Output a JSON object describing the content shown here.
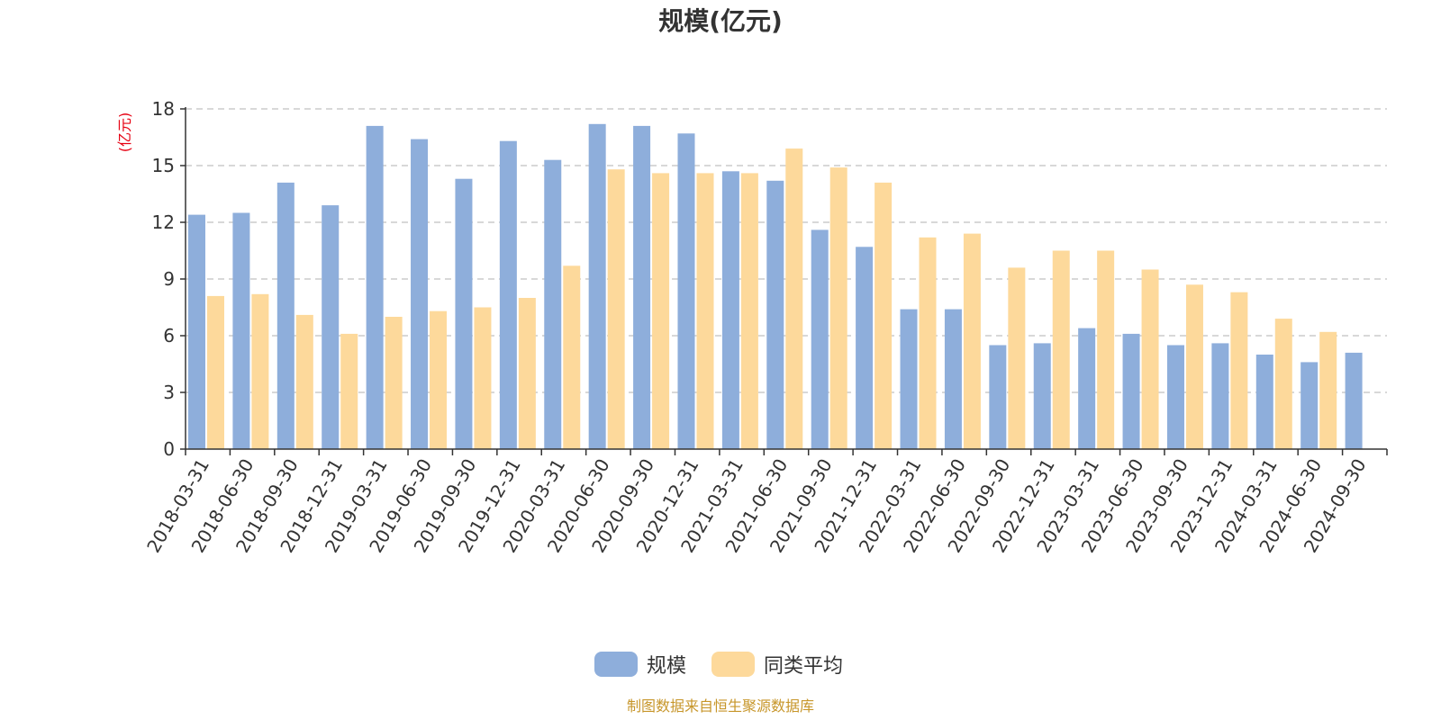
{
  "chart_data": {
    "type": "bar",
    "title": "规模(亿元)",
    "ylabel": "(亿元)",
    "ylim": [
      0,
      18
    ],
    "yticks": [
      0,
      3,
      6,
      9,
      12,
      15,
      18
    ],
    "grid": true,
    "legend_position": "bottom-center",
    "categories": [
      "2018-03-31",
      "2018-06-30",
      "2018-09-30",
      "2018-12-31",
      "2019-03-31",
      "2019-06-30",
      "2019-09-30",
      "2019-12-31",
      "2020-03-31",
      "2020-06-30",
      "2020-09-30",
      "2020-12-31",
      "2021-03-31",
      "2021-06-30",
      "2021-09-30",
      "2021-12-31",
      "2022-03-31",
      "2022-06-30",
      "2022-09-30",
      "2022-12-31",
      "2023-03-31",
      "2023-06-30",
      "2023-09-30",
      "2023-12-31",
      "2024-03-31",
      "2024-06-30",
      "2024-09-30"
    ],
    "series": [
      {
        "name": "规模",
        "color": "#8eaedb",
        "values": [
          12.4,
          12.5,
          14.1,
          12.9,
          17.1,
          16.4,
          14.3,
          16.3,
          15.3,
          17.2,
          17.1,
          16.7,
          14.7,
          14.2,
          11.6,
          10.7,
          7.4,
          7.4,
          5.5,
          5.6,
          6.4,
          6.1,
          5.5,
          5.6,
          5.0,
          4.6,
          5.1
        ]
      },
      {
        "name": "同类平均",
        "color": "#fdd99b",
        "values": [
          8.1,
          8.2,
          7.1,
          6.1,
          7.0,
          7.3,
          7.5,
          8.0,
          9.7,
          14.8,
          14.6,
          14.6,
          14.6,
          15.9,
          14.9,
          14.1,
          11.2,
          11.4,
          9.6,
          10.5,
          10.5,
          9.5,
          8.7,
          8.3,
          6.9,
          6.2,
          null
        ]
      }
    ],
    "source_note": "制图数据来自恒生聚源数据库"
  }
}
